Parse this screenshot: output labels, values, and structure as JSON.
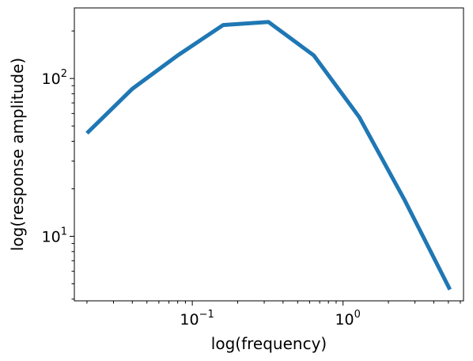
{
  "chart_data": {
    "type": "line",
    "title": "",
    "xlabel": "log(frequency)",
    "ylabel": "log(response amplitude)",
    "xscale": "log",
    "yscale": "log",
    "xlim": [
      0.0165,
      6.3
    ],
    "ylim": [
      3.9,
      280
    ],
    "grid": false,
    "legend": null,
    "x_ticks": [
      {
        "value": 0.1,
        "base": "10",
        "exp": "−1"
      },
      {
        "value": 1,
        "base": "10",
        "exp": "0"
      }
    ],
    "y_ticks": [
      {
        "value": 10,
        "base": "10",
        "exp": "1"
      },
      {
        "value": 100,
        "base": "10",
        "exp": "2"
      }
    ],
    "series": [
      {
        "color": "#1f77b4",
        "x": [
          0.02,
          0.04,
          0.08,
          0.16,
          0.32,
          0.64,
          1.28,
          2.56,
          5.12
        ],
        "y": [
          45,
          86,
          140,
          218,
          228,
          140,
          57,
          17,
          4.6
        ]
      }
    ]
  }
}
